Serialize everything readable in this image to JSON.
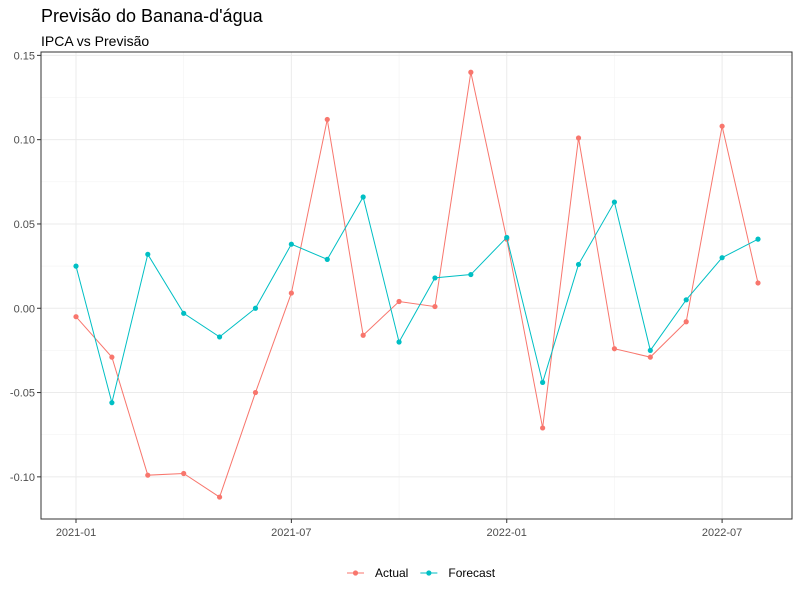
{
  "chart_data": {
    "type": "line",
    "title": "Previsão do Banana-d'água",
    "subtitle": "IPCA vs Previsão",
    "xlabel": "",
    "ylabel": "",
    "x": [
      "2021-01",
      "2021-02",
      "2021-03",
      "2021-04",
      "2021-05",
      "2021-06",
      "2021-07",
      "2021-08",
      "2021-09",
      "2021-10",
      "2021-11",
      "2021-12",
      "2022-01",
      "2022-02",
      "2022-03",
      "2022-04",
      "2022-05",
      "2022-06",
      "2022-07",
      "2022-08"
    ],
    "x_ticks": [
      "2021-01",
      "2021-07",
      "2022-01",
      "2022-07"
    ],
    "y_ticks": [
      -0.1,
      -0.05,
      0.0,
      0.05,
      0.1,
      0.15
    ],
    "y_tick_labels": [
      "-0.10",
      "-0.05",
      "0.00",
      "0.05",
      "0.10",
      "0.15"
    ],
    "ylim": [
      -0.125,
      0.152
    ],
    "grid": true,
    "legend_position": "bottom",
    "series": [
      {
        "name": "Actual",
        "color": "#F8766D",
        "values": [
          -0.005,
          -0.029,
          -0.099,
          -0.098,
          -0.112,
          -0.05,
          0.009,
          0.112,
          -0.016,
          0.004,
          0.001,
          0.14,
          0.041,
          -0.071,
          0.101,
          -0.024,
          -0.029,
          -0.008,
          0.108,
          0.015
        ]
      },
      {
        "name": "Forecast",
        "color": "#00BFC4",
        "values": [
          0.025,
          -0.056,
          0.032,
          -0.003,
          -0.017,
          0.0,
          0.038,
          0.029,
          0.066,
          -0.02,
          0.018,
          0.02,
          0.042,
          -0.044,
          0.026,
          0.063,
          -0.025,
          0.005,
          0.03,
          0.041
        ]
      }
    ]
  }
}
